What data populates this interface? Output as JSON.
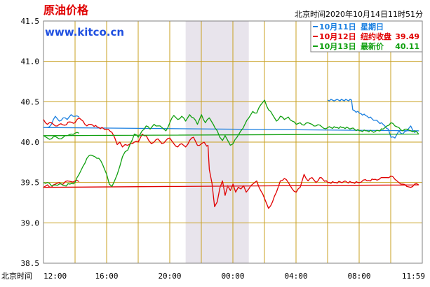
{
  "header": {
    "title": "原油价格",
    "site": "www.kitco.cn",
    "timestamp": "北京时间2020年10月14日11时51分"
  },
  "colors": {
    "background": "#ffffff",
    "frame": "#808080",
    "grid": "#c8a020",
    "shade": "#e8e4ec",
    "title": "#e00000",
    "site": "#2050e0",
    "oct11": "#1a7fe0",
    "oct12": "#e00000",
    "oct13": "#10a010"
  },
  "chart_data": {
    "type": "line",
    "title": "原油价格",
    "xlabel": "北京时间",
    "ylabel": "",
    "ylim": [
      38.5,
      41.5
    ],
    "yticks": [
      "41.5",
      "41.0",
      "40.5",
      "40.0",
      "39.5",
      "39.0",
      "38.5"
    ],
    "xticks": [
      "12:00",
      "16:00",
      "20:00",
      "00:00",
      "04:00",
      "08:00",
      "11:59"
    ],
    "grid": true,
    "legend_position": "top-right",
    "shaded_region": {
      "from": "21:00",
      "to": "01:00"
    },
    "legend": [
      {
        "label": "10月11日",
        "key": "oct11",
        "caption": "星期日",
        "value": ""
      },
      {
        "label": "10月12日",
        "key": "oct12",
        "caption": "纽约收盘",
        "value": "39.49"
      },
      {
        "label": "10月13日",
        "key": "oct13",
        "caption": "最新价",
        "value": "40.11"
      }
    ],
    "series": [
      {
        "name": "10月11日",
        "key": "oct11",
        "points": [
          [
            "06:00",
            40.52
          ],
          [
            "06:30",
            40.52
          ],
          [
            "07:30",
            40.52
          ],
          [
            "07:35",
            40.4
          ],
          [
            "08:00",
            40.36
          ],
          [
            "08:30",
            40.32
          ],
          [
            "09:00",
            40.27
          ],
          [
            "09:30",
            40.22
          ],
          [
            "09:50",
            40.16
          ],
          [
            "10:00",
            40.06
          ],
          [
            "10:15",
            40.05
          ],
          [
            "10:30",
            40.14
          ],
          [
            "10:45",
            40.1
          ],
          [
            "11:00",
            40.14
          ],
          [
            "11:15",
            40.2
          ],
          [
            "11:30",
            40.12
          ],
          [
            "11:45",
            40.14
          ],
          [
            "12:00",
            40.18
          ],
          [
            "12:15",
            40.18
          ],
          [
            "12:30",
            40.22
          ],
          [
            "12:45",
            40.32
          ],
          [
            "13:00",
            40.26
          ],
          [
            "13:15",
            40.3
          ],
          [
            "13:30",
            40.28
          ],
          [
            "13:45",
            40.34
          ],
          [
            "14:00",
            40.32
          ],
          [
            "14:15",
            40.31
          ]
        ]
      },
      {
        "name": "10月12日",
        "key": "oct12",
        "points": [
          [
            "12:00",
            40.28
          ],
          [
            "12:15",
            40.22
          ],
          [
            "12:30",
            40.24
          ],
          [
            "12:45",
            40.2
          ],
          [
            "13:00",
            40.22
          ],
          [
            "13:20",
            40.21
          ],
          [
            "13:40",
            40.25
          ],
          [
            "14:00",
            40.24
          ],
          [
            "14:15",
            40.3
          ],
          [
            "14:30",
            40.26
          ],
          [
            "14:45",
            40.2
          ],
          [
            "15:00",
            40.22
          ],
          [
            "15:30",
            40.18
          ],
          [
            "16:00",
            40.16
          ],
          [
            "16:20",
            40.12
          ],
          [
            "16:30",
            40.06
          ],
          [
            "16:40",
            39.97
          ],
          [
            "16:50",
            40.0
          ],
          [
            "17:00",
            39.94
          ],
          [
            "17:10",
            39.97
          ],
          [
            "17:20",
            39.96
          ],
          [
            "17:30",
            39.98
          ],
          [
            "17:45",
            40.0
          ],
          [
            "18:00",
            40.0
          ],
          [
            "18:15",
            40.1
          ],
          [
            "18:30",
            40.08
          ],
          [
            "18:40",
            40.02
          ],
          [
            "18:50",
            39.98
          ],
          [
            "19:00",
            40.0
          ],
          [
            "19:15",
            40.04
          ],
          [
            "19:30",
            39.98
          ],
          [
            "19:45",
            40.02
          ],
          [
            "20:00",
            40.05
          ],
          [
            "20:15",
            39.98
          ],
          [
            "20:30",
            39.94
          ],
          [
            "20:45",
            39.98
          ],
          [
            "21:00",
            39.94
          ],
          [
            "21:15",
            40.02
          ],
          [
            "21:30",
            40.06
          ],
          [
            "21:45",
            39.96
          ],
          [
            "22:00",
            39.98
          ],
          [
            "22:10",
            40.0
          ],
          [
            "22:20",
            39.95
          ],
          [
            "22:25",
            39.96
          ],
          [
            "22:30",
            39.66
          ],
          [
            "22:40",
            39.49
          ],
          [
            "22:50",
            39.2
          ],
          [
            "23:00",
            39.26
          ],
          [
            "23:10",
            39.43
          ],
          [
            "23:20",
            39.52
          ],
          [
            "23:30",
            39.34
          ],
          [
            "23:40",
            39.46
          ],
          [
            "23:50",
            39.4
          ],
          [
            "00:00",
            39.48
          ],
          [
            "00:10",
            39.38
          ],
          [
            "00:20",
            39.44
          ],
          [
            "00:30",
            39.42
          ],
          [
            "00:40",
            39.46
          ],
          [
            "00:50",
            39.38
          ],
          [
            "01:00",
            39.42
          ],
          [
            "01:15",
            39.48
          ],
          [
            "01:30",
            39.52
          ],
          [
            "01:45",
            39.4
          ],
          [
            "02:00",
            39.3
          ],
          [
            "02:15",
            39.18
          ],
          [
            "02:30",
            39.26
          ],
          [
            "02:45",
            39.38
          ],
          [
            "03:00",
            39.52
          ],
          [
            "03:15",
            39.55
          ],
          [
            "03:30",
            39.5
          ],
          [
            "03:45",
            39.42
          ],
          [
            "04:00",
            39.38
          ],
          [
            "04:15",
            39.44
          ],
          [
            "04:30",
            39.6
          ],
          [
            "04:45",
            39.52
          ],
          [
            "05:00",
            39.56
          ],
          [
            "05:15",
            39.5
          ],
          [
            "05:30",
            39.56
          ],
          [
            "06:00",
            39.5
          ],
          [
            "06:30",
            39.5
          ],
          [
            "07:00",
            39.51
          ],
          [
            "07:30",
            39.5
          ],
          [
            "08:00",
            39.5
          ],
          [
            "08:15",
            39.53
          ],
          [
            "08:30",
            39.52
          ],
          [
            "09:00",
            39.54
          ],
          [
            "09:15",
            39.54
          ],
          [
            "09:30",
            39.56
          ],
          [
            "09:45",
            39.56
          ],
          [
            "10:00",
            39.58
          ],
          [
            "10:15",
            39.54
          ],
          [
            "10:30",
            39.5
          ],
          [
            "10:45",
            39.48
          ],
          [
            "11:00",
            39.45
          ],
          [
            "11:15",
            39.44
          ],
          [
            "11:30",
            39.48
          ],
          [
            "11:45",
            39.47
          ],
          [
            "12:00",
            39.44
          ],
          [
            "12:15",
            39.47
          ],
          [
            "12:30",
            39.44
          ],
          [
            "12:45",
            39.48
          ],
          [
            "13:00",
            39.5
          ],
          [
            "13:15",
            39.48
          ],
          [
            "13:30",
            39.52
          ],
          [
            "13:45",
            39.51
          ],
          [
            "14:00",
            39.52
          ],
          [
            "14:15",
            39.51
          ]
        ]
      },
      {
        "name": "10月13日",
        "key": "oct13",
        "points": [
          [
            "12:00",
            39.5
          ],
          [
            "12:15",
            39.5
          ],
          [
            "12:30",
            39.46
          ],
          [
            "12:45",
            39.47
          ],
          [
            "13:00",
            39.48
          ],
          [
            "13:20",
            39.46
          ],
          [
            "13:40",
            39.48
          ],
          [
            "14:00",
            39.5
          ],
          [
            "14:15",
            39.6
          ],
          [
            "14:30",
            39.7
          ],
          [
            "14:45",
            39.8
          ],
          [
            "15:00",
            39.84
          ],
          [
            "15:15",
            39.82
          ],
          [
            "15:30",
            39.8
          ],
          [
            "15:45",
            39.72
          ],
          [
            "16:00",
            39.6
          ],
          [
            "16:10",
            39.48
          ],
          [
            "16:20",
            39.45
          ],
          [
            "16:30",
            39.52
          ],
          [
            "16:40",
            39.6
          ],
          [
            "16:50",
            39.7
          ],
          [
            "17:00",
            39.82
          ],
          [
            "17:10",
            39.88
          ],
          [
            "17:20",
            39.9
          ],
          [
            "17:30",
            39.98
          ],
          [
            "17:45",
            40.1
          ],
          [
            "18:00",
            40.06
          ],
          [
            "18:15",
            40.14
          ],
          [
            "18:30",
            40.2
          ],
          [
            "18:45",
            40.16
          ],
          [
            "19:00",
            40.22
          ],
          [
            "19:15",
            40.2
          ],
          [
            "19:30",
            40.18
          ],
          [
            "19:45",
            40.14
          ],
          [
            "20:00",
            40.24
          ],
          [
            "20:15",
            40.33
          ],
          [
            "20:30",
            40.28
          ],
          [
            "20:45",
            40.32
          ],
          [
            "21:00",
            40.26
          ],
          [
            "21:15",
            40.34
          ],
          [
            "21:30",
            40.3
          ],
          [
            "21:45",
            40.22
          ],
          [
            "22:00",
            40.34
          ],
          [
            "22:15",
            40.24
          ],
          [
            "22:30",
            40.3
          ],
          [
            "22:45",
            40.22
          ],
          [
            "23:00",
            40.14
          ],
          [
            "23:10",
            40.06
          ],
          [
            "23:20",
            40.02
          ],
          [
            "23:30",
            40.08
          ],
          [
            "23:40",
            40.02
          ],
          [
            "23:50",
            39.96
          ],
          [
            "00:00",
            39.98
          ],
          [
            "00:15",
            40.06
          ],
          [
            "00:30",
            40.14
          ],
          [
            "00:45",
            40.22
          ],
          [
            "01:00",
            40.3
          ],
          [
            "01:15",
            40.38
          ],
          [
            "01:30",
            40.36
          ],
          [
            "01:45",
            40.46
          ],
          [
            "02:00",
            40.52
          ],
          [
            "02:15",
            40.4
          ],
          [
            "02:30",
            40.34
          ],
          [
            "02:45",
            40.26
          ],
          [
            "03:00",
            40.32
          ],
          [
            "03:15",
            40.28
          ],
          [
            "03:30",
            40.31
          ],
          [
            "03:45",
            40.26
          ],
          [
            "04:00",
            40.22
          ],
          [
            "04:15",
            40.24
          ],
          [
            "04:30",
            40.21
          ],
          [
            "04:45",
            40.24
          ],
          [
            "05:00",
            40.22
          ],
          [
            "05:15",
            40.2
          ],
          [
            "05:30",
            40.21
          ],
          [
            "05:45",
            40.17
          ],
          [
            "06:00",
            40.18
          ],
          [
            "06:30",
            40.18
          ],
          [
            "07:00",
            40.18
          ],
          [
            "07:30",
            40.17
          ],
          [
            "08:00",
            40.14
          ],
          [
            "08:30",
            40.14
          ],
          [
            "09:00",
            40.13
          ],
          [
            "09:30",
            40.16
          ],
          [
            "09:45",
            40.2
          ],
          [
            "10:00",
            40.24
          ],
          [
            "10:15",
            40.2
          ],
          [
            "10:30",
            40.18
          ],
          [
            "10:45",
            40.14
          ],
          [
            "11:00",
            40.16
          ],
          [
            "11:15",
            40.14
          ],
          [
            "11:30",
            40.14
          ],
          [
            "11:45",
            40.1
          ],
          [
            "12:00",
            40.08
          ],
          [
            "12:15",
            40.05
          ],
          [
            "12:30",
            40.04
          ],
          [
            "12:45",
            40.07
          ],
          [
            "13:00",
            40.04
          ],
          [
            "13:15",
            40.06
          ],
          [
            "13:30",
            40.08
          ],
          [
            "13:45",
            40.1
          ],
          [
            "14:00",
            40.11
          ],
          [
            "14:15",
            40.11
          ]
        ]
      }
    ]
  }
}
